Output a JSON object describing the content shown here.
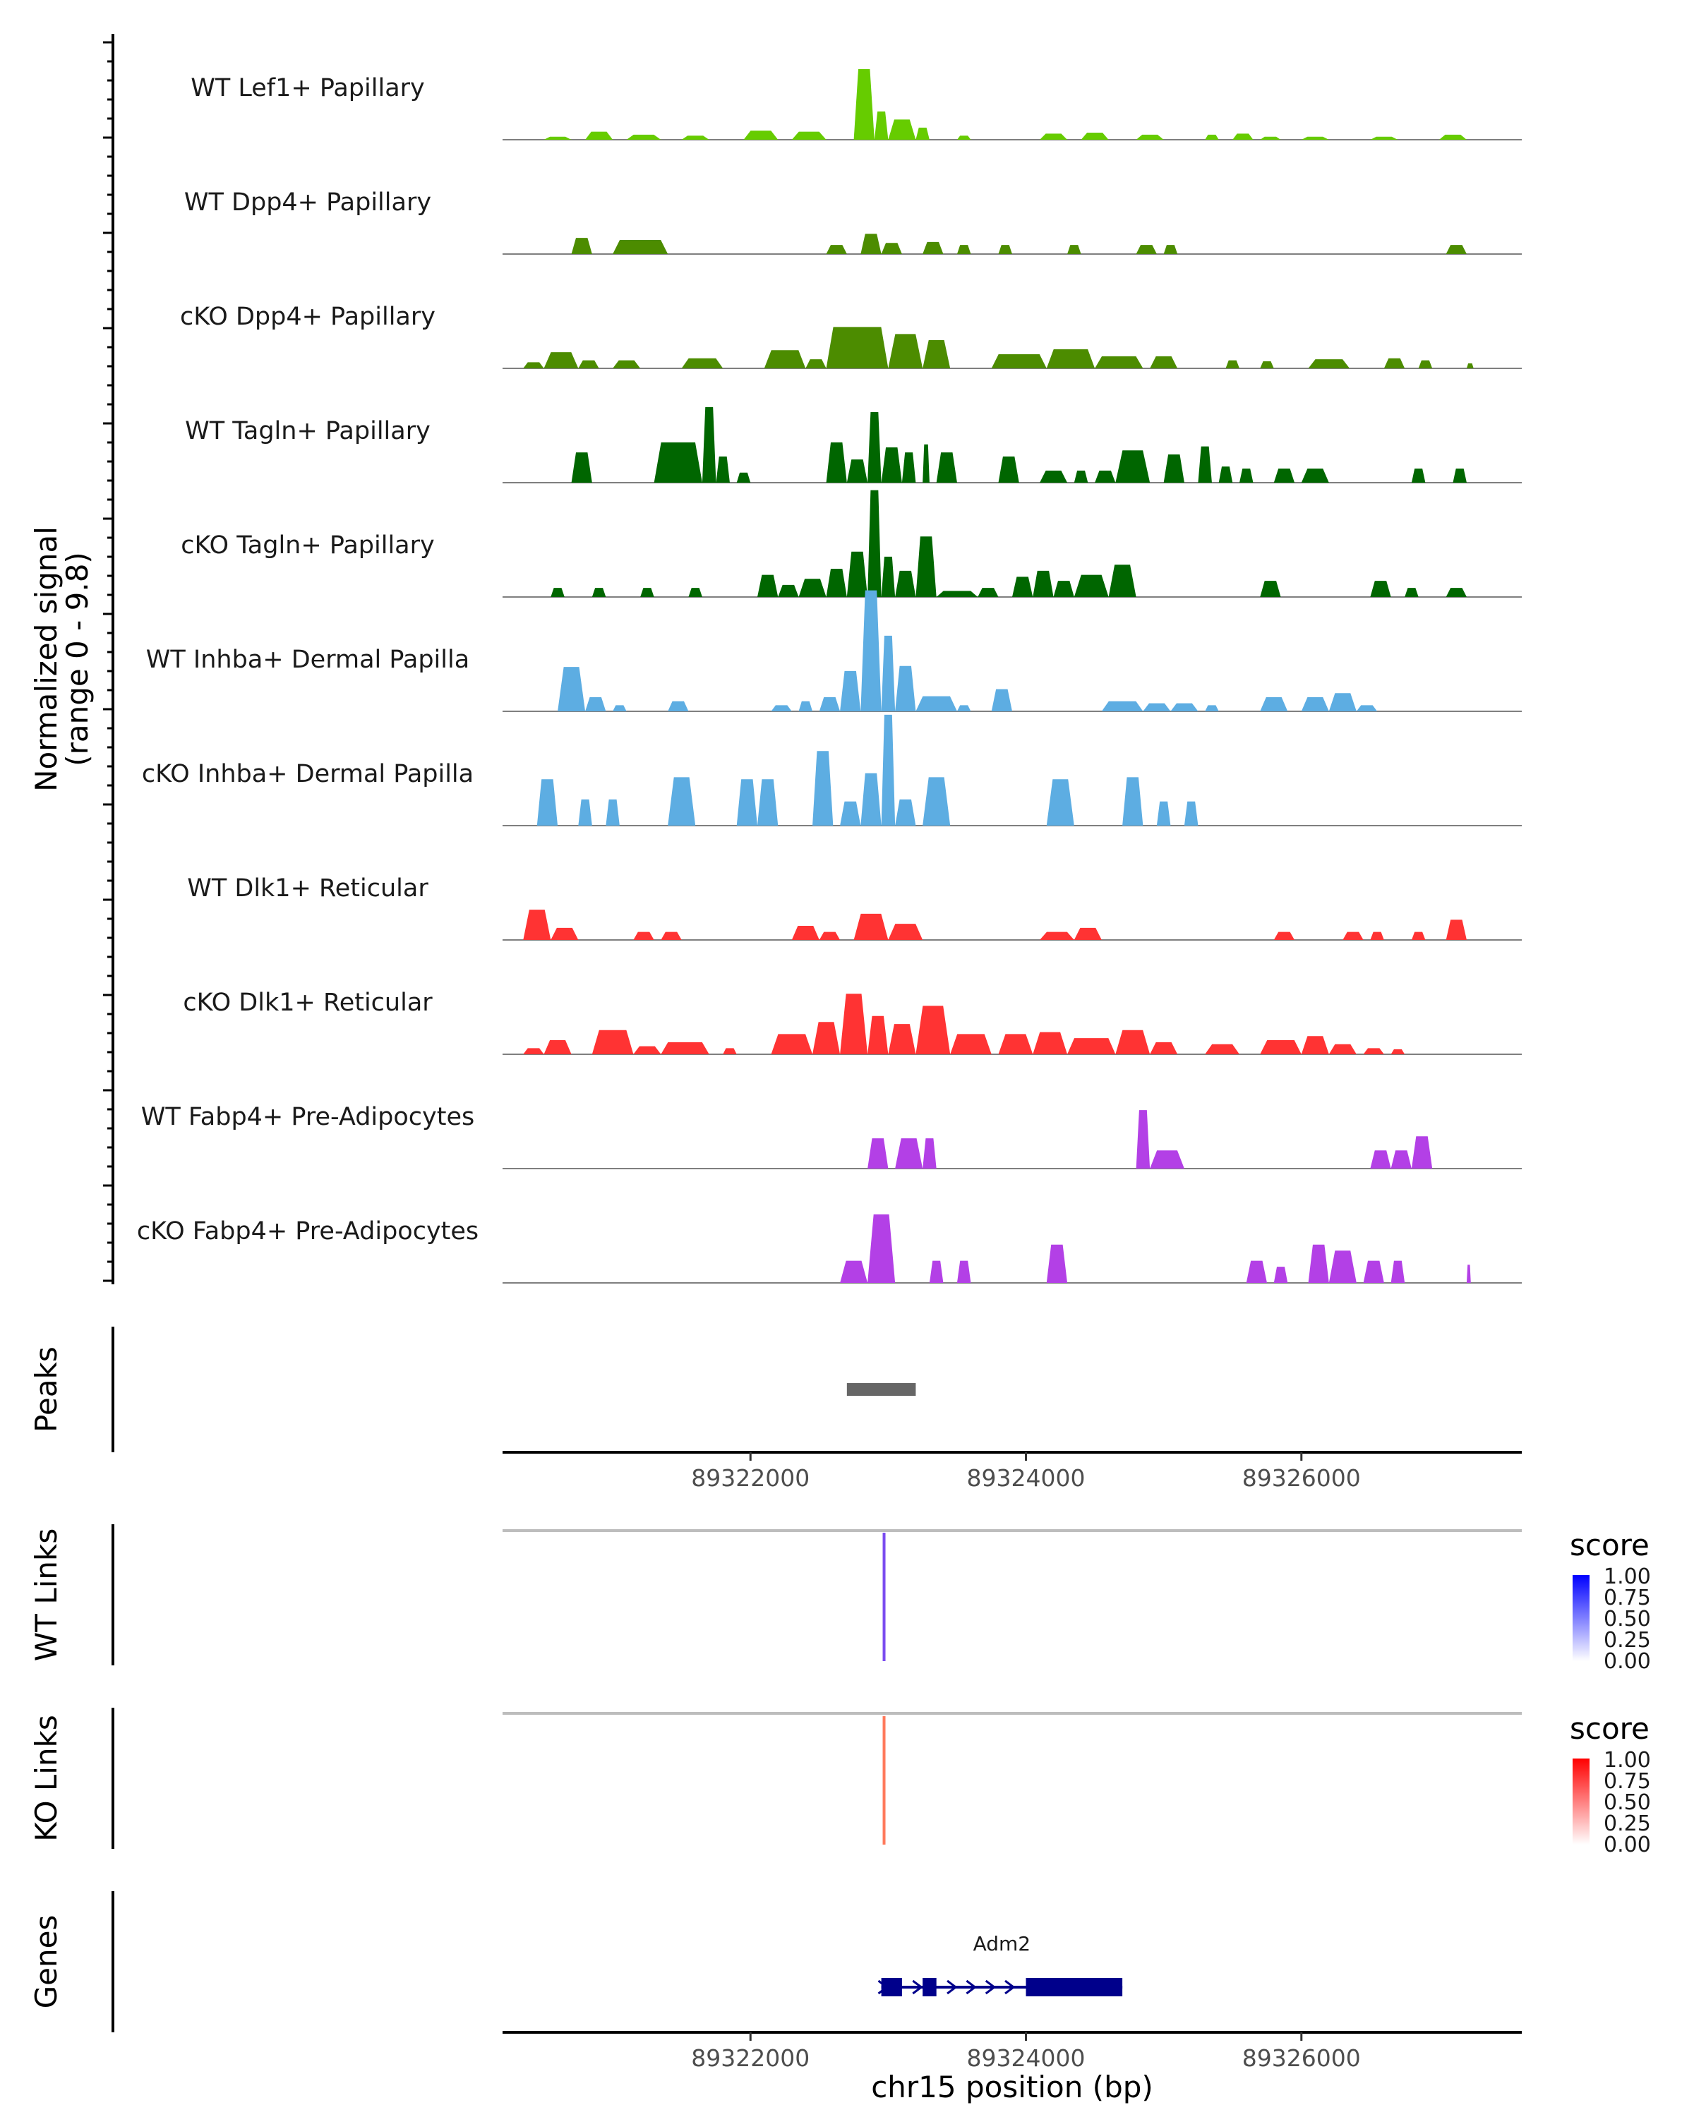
{
  "chart_data": {
    "type": "area",
    "title": "",
    "xlabel": "chr15 position (bp)",
    "ylabel_coverage": [
      "Normalized signal",
      "(range 0 - 9.8)"
    ],
    "ylim": [
      0,
      9.8
    ],
    "xlim": [
      89320200,
      89327600
    ],
    "x_ticks": [
      89322000,
      89324000,
      89326000
    ],
    "x_tick_labels": [
      "89322000",
      "89324000",
      "89326000"
    ],
    "tracks": [
      {
        "name": "WT Lef1+ Papillary",
        "color": "#66CC00",
        "peaks": [
          [
            89320500,
            89320700,
            0.3
          ],
          [
            89320800,
            89321000,
            0.8
          ],
          [
            89321100,
            89321350,
            0.5
          ],
          [
            89321500,
            89321700,
            0.4
          ],
          [
            89321950,
            89322200,
            0.9
          ],
          [
            89322300,
            89322550,
            0.8
          ],
          [
            89322750,
            89322900,
            7.0
          ],
          [
            89322900,
            89323000,
            2.8
          ],
          [
            89323000,
            89323200,
            2.0
          ],
          [
            89323200,
            89323300,
            1.2
          ],
          [
            89323500,
            89323600,
            0.4
          ],
          [
            89324100,
            89324300,
            0.6
          ],
          [
            89324400,
            89324600,
            0.7
          ],
          [
            89324800,
            89325000,
            0.5
          ],
          [
            89325300,
            89325400,
            0.5
          ],
          [
            89325500,
            89325650,
            0.6
          ],
          [
            89325700,
            89325850,
            0.3
          ],
          [
            89326000,
            89326200,
            0.3
          ],
          [
            89326500,
            89326700,
            0.3
          ],
          [
            89327000,
            89327200,
            0.5
          ]
        ]
      },
      {
        "name": "WT Dpp4+ Papillary",
        "color": "#4C8C00",
        "peaks": [
          [
            89320700,
            89320850,
            1.6
          ],
          [
            89321000,
            89321400,
            1.4
          ],
          [
            89322550,
            89322700,
            0.9
          ],
          [
            89322800,
            89322950,
            2.0
          ],
          [
            89322950,
            89323100,
            1.1
          ],
          [
            89323250,
            89323400,
            1.2
          ],
          [
            89323500,
            89323600,
            0.9
          ],
          [
            89323800,
            89323900,
            0.9
          ],
          [
            89324300,
            89324400,
            0.9
          ],
          [
            89324800,
            89324950,
            0.9
          ],
          [
            89325000,
            89325100,
            0.9
          ],
          [
            89327050,
            89327200,
            0.9
          ]
        ]
      },
      {
        "name": "cKO Dpp4+ Papillary",
        "color": "#4C8C00",
        "peaks": [
          [
            89320350,
            89320500,
            0.6
          ],
          [
            89320500,
            89320750,
            1.6
          ],
          [
            89320750,
            89320900,
            0.8
          ],
          [
            89321000,
            89321200,
            0.8
          ],
          [
            89321500,
            89321800,
            1.0
          ],
          [
            89322100,
            89322400,
            1.8
          ],
          [
            89322400,
            89322550,
            0.9
          ],
          [
            89322550,
            89323000,
            4.1
          ],
          [
            89323000,
            89323250,
            3.4
          ],
          [
            89323250,
            89323450,
            2.8
          ],
          [
            89323750,
            89324150,
            1.4
          ],
          [
            89324150,
            89324500,
            1.9
          ],
          [
            89324500,
            89324850,
            1.2
          ],
          [
            89324900,
            89325100,
            1.2
          ],
          [
            89325450,
            89325550,
            0.8
          ],
          [
            89325700,
            89325800,
            0.7
          ],
          [
            89326050,
            89326350,
            0.9
          ],
          [
            89326600,
            89326750,
            1.0
          ],
          [
            89326850,
            89326950,
            0.8
          ],
          [
            89327200,
            89327250,
            0.5
          ]
        ]
      },
      {
        "name": "WT Tagln+ Papillary",
        "color": "#006600",
        "peaks": [
          [
            89320700,
            89320850,
            3.0
          ],
          [
            89321300,
            89321650,
            4.0
          ],
          [
            89321650,
            89321750,
            7.5
          ],
          [
            89321750,
            89321850,
            2.6
          ],
          [
            89321900,
            89322000,
            1.0
          ],
          [
            89322550,
            89322700,
            4.0
          ],
          [
            89322700,
            89322850,
            2.3
          ],
          [
            89322850,
            89322950,
            7.0
          ],
          [
            89322950,
            89323100,
            3.5
          ],
          [
            89323100,
            89323200,
            3.0
          ],
          [
            89323250,
            89323300,
            3.8
          ],
          [
            89323350,
            89323500,
            3.0
          ],
          [
            89323800,
            89323950,
            2.6
          ],
          [
            89324100,
            89324300,
            1.2
          ],
          [
            89324350,
            89324450,
            1.2
          ],
          [
            89324500,
            89324650,
            1.2
          ],
          [
            89324650,
            89324900,
            3.2
          ],
          [
            89325000,
            89325150,
            2.8
          ],
          [
            89325250,
            89325350,
            3.6
          ],
          [
            89325400,
            89325500,
            1.6
          ],
          [
            89325550,
            89325650,
            1.4
          ],
          [
            89325800,
            89325950,
            1.4
          ],
          [
            89326000,
            89326200,
            1.4
          ],
          [
            89326800,
            89326900,
            1.4
          ],
          [
            89327100,
            89327200,
            1.4
          ]
        ]
      },
      {
        "name": "cKO Tagln+ Papillary",
        "color": "#006600",
        "peaks": [
          [
            89320550,
            89320650,
            0.9
          ],
          [
            89320850,
            89320950,
            0.9
          ],
          [
            89321200,
            89321300,
            0.9
          ],
          [
            89321550,
            89321650,
            0.9
          ],
          [
            89322050,
            89322200,
            2.2
          ],
          [
            89322200,
            89322350,
            1.2
          ],
          [
            89322350,
            89322550,
            1.8
          ],
          [
            89322550,
            89322700,
            2.8
          ],
          [
            89322700,
            89322850,
            4.5
          ],
          [
            89322850,
            89322950,
            10.6
          ],
          [
            89322950,
            89323050,
            4.0
          ],
          [
            89323050,
            89323200,
            2.6
          ],
          [
            89323200,
            89323350,
            6.0
          ],
          [
            89323350,
            89323650,
            0.6
          ],
          [
            89323650,
            89323800,
            0.9
          ],
          [
            89323900,
            89324050,
            2.0
          ],
          [
            89324050,
            89324200,
            2.6
          ],
          [
            89324200,
            89324350,
            1.6
          ],
          [
            89324350,
            89324600,
            2.2
          ],
          [
            89324600,
            89324800,
            3.2
          ],
          [
            89325700,
            89325850,
            1.6
          ],
          [
            89326500,
            89326650,
            1.6
          ],
          [
            89326750,
            89326850,
            0.9
          ],
          [
            89327050,
            89327200,
            0.9
          ]
        ]
      },
      {
        "name": "WT Inhba+ Dermal Papilla",
        "color": "#5DADE2",
        "peaks": [
          [
            89320600,
            89320800,
            4.4
          ],
          [
            89320800,
            89320950,
            1.4
          ],
          [
            89321000,
            89321100,
            0.6
          ],
          [
            89321400,
            89321550,
            1.0
          ],
          [
            89322150,
            89322300,
            0.6
          ],
          [
            89322350,
            89322450,
            1.0
          ],
          [
            89322500,
            89322650,
            1.4
          ],
          [
            89322650,
            89322800,
            4.0
          ],
          [
            89322800,
            89322950,
            12.0
          ],
          [
            89322950,
            89323050,
            7.5
          ],
          [
            89323050,
            89323200,
            4.5
          ],
          [
            89323200,
            89323500,
            1.5
          ],
          [
            89323500,
            89323600,
            0.6
          ],
          [
            89323750,
            89323900,
            2.2
          ],
          [
            89324550,
            89324850,
            1.0
          ],
          [
            89324850,
            89325050,
            0.8
          ],
          [
            89325050,
            89325250,
            0.8
          ],
          [
            89325300,
            89325400,
            0.6
          ],
          [
            89325700,
            89325900,
            1.4
          ],
          [
            89326000,
            89326200,
            1.4
          ],
          [
            89326200,
            89326400,
            1.8
          ],
          [
            89326400,
            89326550,
            0.6
          ]
        ]
      },
      {
        "name": "cKO Inhba+ Dermal Papilla",
        "color": "#5DADE2",
        "peaks": [
          [
            89320450,
            89320600,
            4.6
          ],
          [
            89320750,
            89320850,
            2.6
          ],
          [
            89320950,
            89321050,
            2.6
          ],
          [
            89321400,
            89321600,
            4.8
          ],
          [
            89321900,
            89322050,
            4.6
          ],
          [
            89322050,
            89322200,
            4.6
          ],
          [
            89322450,
            89322600,
            7.4
          ],
          [
            89322650,
            89322800,
            2.4
          ],
          [
            89322800,
            89322950,
            5.2
          ],
          [
            89322950,
            89323050,
            11.0
          ],
          [
            89323050,
            89323200,
            2.6
          ],
          [
            89323250,
            89323450,
            4.8
          ],
          [
            89324150,
            89324350,
            4.6
          ],
          [
            89324700,
            89324850,
            4.8
          ],
          [
            89324950,
            89325050,
            2.4
          ],
          [
            89325150,
            89325250,
            2.4
          ]
        ]
      },
      {
        "name": "WT Dlk1+ Reticular",
        "color": "#FF3333",
        "peaks": [
          [
            89320350,
            89320550,
            3.0
          ],
          [
            89320550,
            89320750,
            1.2
          ],
          [
            89321150,
            89321300,
            0.8
          ],
          [
            89321350,
            89321500,
            0.8
          ],
          [
            89322300,
            89322500,
            1.4
          ],
          [
            89322500,
            89322650,
            0.8
          ],
          [
            89322750,
            89323000,
            2.6
          ],
          [
            89323000,
            89323250,
            1.6
          ],
          [
            89324100,
            89324350,
            0.8
          ],
          [
            89324350,
            89324550,
            1.2
          ],
          [
            89325800,
            89325950,
            0.8
          ],
          [
            89326300,
            89326450,
            0.8
          ],
          [
            89326500,
            89326600,
            0.8
          ],
          [
            89326800,
            89326900,
            0.8
          ],
          [
            89327050,
            89327200,
            2.0
          ]
        ]
      },
      {
        "name": "cKO Dlk1+ Reticular",
        "color": "#FF3333",
        "peaks": [
          [
            89320350,
            89320500,
            0.6
          ],
          [
            89320500,
            89320700,
            1.4
          ],
          [
            89320850,
            89321150,
            2.4
          ],
          [
            89321150,
            89321350,
            0.8
          ],
          [
            89321350,
            89321700,
            1.2
          ],
          [
            89321800,
            89321900,
            0.6
          ],
          [
            89322150,
            89322450,
            2.0
          ],
          [
            89322450,
            89322650,
            3.2
          ],
          [
            89322650,
            89322850,
            6.0
          ],
          [
            89322850,
            89323000,
            3.8
          ],
          [
            89323000,
            89323200,
            3.0
          ],
          [
            89323200,
            89323450,
            4.8
          ],
          [
            89323450,
            89323750,
            2.0
          ],
          [
            89323800,
            89324050,
            2.0
          ],
          [
            89324050,
            89324300,
            2.2
          ],
          [
            89324300,
            89324650,
            1.6
          ],
          [
            89324650,
            89324900,
            2.4
          ],
          [
            89324900,
            89325100,
            1.2
          ],
          [
            89325300,
            89325550,
            1.0
          ],
          [
            89325700,
            89326000,
            1.4
          ],
          [
            89326000,
            89326200,
            1.8
          ],
          [
            89326200,
            89326400,
            1.0
          ],
          [
            89326450,
            89326600,
            0.6
          ],
          [
            89326650,
            89326750,
            0.5
          ]
        ]
      },
      {
        "name": "WT Fabp4+ Pre-Adipocytes",
        "color": "#B340E6",
        "peaks": [
          [
            89322850,
            89323000,
            3.0
          ],
          [
            89323050,
            89323250,
            3.0
          ],
          [
            89323250,
            89323350,
            3.0
          ],
          [
            89324800,
            89324900,
            5.8
          ],
          [
            89324900,
            89325150,
            1.8
          ],
          [
            89326500,
            89326650,
            1.8
          ],
          [
            89326650,
            89326800,
            1.8
          ],
          [
            89326800,
            89326950,
            3.2
          ]
        ]
      },
      {
        "name": "cKO Fabp4+ Pre-Adipocytes",
        "color": "#B340E6",
        "peaks": [
          [
            89322650,
            89322850,
            2.2
          ],
          [
            89322850,
            89323050,
            6.8
          ],
          [
            89323300,
            89323400,
            2.2
          ],
          [
            89323500,
            89323600,
            2.2
          ],
          [
            89324150,
            89324300,
            3.8
          ],
          [
            89325600,
            89325750,
            2.2
          ],
          [
            89325800,
            89325900,
            1.6
          ],
          [
            89326050,
            89326200,
            3.8
          ],
          [
            89326200,
            89326400,
            3.2
          ],
          [
            89326450,
            89326600,
            2.2
          ],
          [
            89326650,
            89326750,
            2.2
          ],
          [
            89327200,
            89327230,
            1.8
          ]
        ]
      }
    ],
    "peaks_track": {
      "label": "Peaks",
      "regions": [
        [
          89322700,
          89323200
        ]
      ],
      "color": "#666666"
    },
    "links_tracks": [
      {
        "label": "WT Links",
        "position": 89322970,
        "score": 0.8,
        "color": "#7B4CF0",
        "legend_title": "score",
        "legend_ticks": [
          "1.00",
          "0.75",
          "0.50",
          "0.25",
          "0.00"
        ],
        "gradient": [
          "#ffffff",
          "#0000ff"
        ]
      },
      {
        "label": "KO Links",
        "position": 89322970,
        "score": 0.6,
        "color": "#FF7A5C",
        "legend_title": "score",
        "legend_ticks": [
          "1.00",
          "0.75",
          "0.50",
          "0.25",
          "0.00"
        ],
        "gradient": [
          "#ffffff",
          "#ff0000"
        ]
      }
    ],
    "genes_track": {
      "label": "Genes",
      "gene": "Adm2",
      "color": "#00008B",
      "start": 89322950,
      "end": 89324700,
      "exons": [
        [
          89322950,
          89323100
        ],
        [
          89323250,
          89323350
        ],
        [
          89324000,
          89324700
        ]
      ]
    }
  }
}
